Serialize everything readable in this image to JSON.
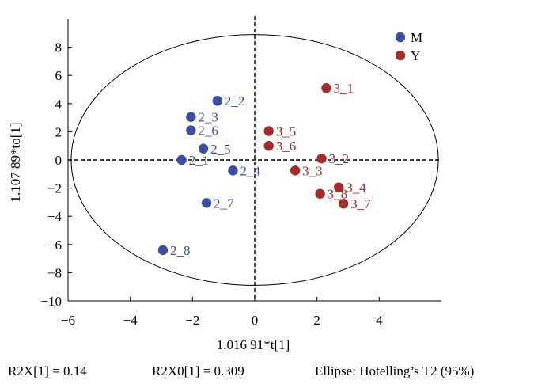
{
  "chart_data": {
    "type": "scatter",
    "xlabel": "1.016 91*t[1]",
    "ylabel": "1.107 89*to[1]",
    "xlim": [
      -6,
      6
    ],
    "ylim": [
      -10,
      10
    ],
    "xticks": [
      -6,
      -4,
      -2,
      0,
      2,
      4
    ],
    "yticks": [
      -10,
      -8,
      -6,
      -4,
      -2,
      0,
      2,
      4,
      6,
      8
    ],
    "xtick_labels": [
      "−6",
      "−4",
      "−2",
      "0",
      "2",
      "4"
    ],
    "ytick_labels": [
      "−10",
      "−8",
      "−6",
      "−4",
      "−2",
      "0",
      "2",
      "4",
      "6",
      "8"
    ],
    "legend_position": "top-right",
    "ellipse": {
      "center": [
        0,
        0
      ],
      "semi_x": 5.9,
      "semi_y": 8.9
    },
    "series": [
      {
        "name": "M",
        "color": "#3a4fa3",
        "points": [
          {
            "label": "2_1",
            "x": -2.35,
            "y": 0.0
          },
          {
            "label": "2_2",
            "x": -1.2,
            "y": 4.2
          },
          {
            "label": "2_3",
            "x": -2.05,
            "y": 3.05
          },
          {
            "label": "2_4",
            "x": -0.7,
            "y": -0.75
          },
          {
            "label": "2_5",
            "x": -1.65,
            "y": 0.8
          },
          {
            "label": "2_6",
            "x": -2.05,
            "y": 2.1
          },
          {
            "label": "2_7",
            "x": -1.55,
            "y": -3.05
          },
          {
            "label": "2_8",
            "x": -2.95,
            "y": -6.4
          }
        ]
      },
      {
        "name": "Y",
        "color": "#a52a2a",
        "points": [
          {
            "label": "3_1",
            "x": 2.3,
            "y": 5.1
          },
          {
            "label": "3_2",
            "x": 2.15,
            "y": 0.1
          },
          {
            "label": "3_3",
            "x": 1.3,
            "y": -0.75
          },
          {
            "label": "3_4",
            "x": 2.7,
            "y": -1.95
          },
          {
            "label": "3_5",
            "x": 0.45,
            "y": 2.05
          },
          {
            "label": "3_6",
            "x": 0.45,
            "y": 1.0
          },
          {
            "label": "3_7",
            "x": 2.85,
            "y": -3.1
          },
          {
            "label": "3_8",
            "x": 2.1,
            "y": -2.4
          }
        ]
      }
    ]
  },
  "footer": {
    "r2x": "R2X[1] = 0.14",
    "r2x0": "R2X0[1] = 0.309",
    "ellipse_note": "Ellipse: Hotelling’s T2 (95%)"
  }
}
